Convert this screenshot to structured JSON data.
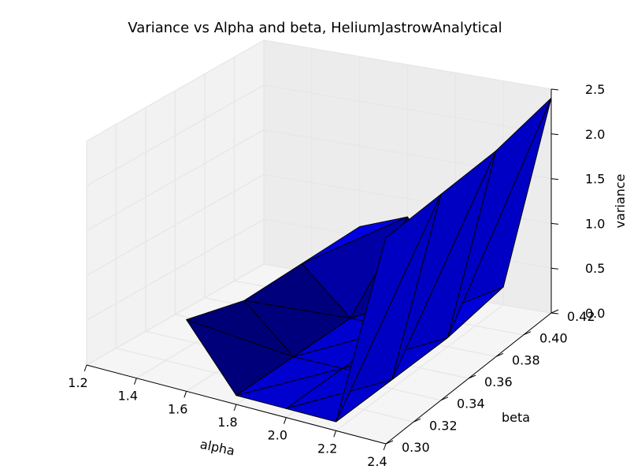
{
  "chart_data": {
    "type": "surface3d",
    "title": "Variance vs Alpha and beta, HeliumJastrowAnalytical",
    "xlabel": "alpha",
    "ylabel": "beta",
    "zlabel": "variance",
    "xlim": [
      1.2,
      2.4
    ],
    "ylim": [
      0.3,
      0.42
    ],
    "zlim": [
      0.0,
      2.5
    ],
    "x_ticks": [
      "1.2",
      "1.4",
      "1.6",
      "1.8",
      "2.0",
      "2.2",
      "2.4"
    ],
    "y_ticks": [
      "0.30",
      "0.32",
      "0.34",
      "0.36",
      "0.38",
      "0.40",
      "0.42"
    ],
    "z_ticks": [
      "0.0",
      "0.5",
      "1.0",
      "1.5",
      "2.0",
      "2.5"
    ],
    "grid": true,
    "surface_color": "#0000ff",
    "alpha": [
      1.6,
      1.8,
      2.0,
      2.2,
      2.4
    ],
    "beta": [
      0.3,
      0.34,
      0.38,
      0.42
    ],
    "variance": [
      [
        0.8,
        0.1,
        0.1,
        0.1,
        2.3
      ],
      [
        0.6,
        0.1,
        0.1,
        0.1,
        2.3
      ],
      [
        0.6,
        0.1,
        0.1,
        0.1,
        2.3
      ],
      [
        0.6,
        0.8,
        0.1,
        0.2,
        2.4
      ]
    ]
  }
}
